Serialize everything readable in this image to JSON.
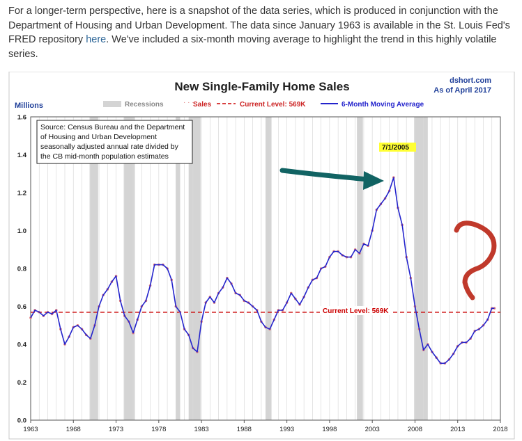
{
  "intro": {
    "text_before_link": "For a longer-term perspective, here is a snapshot of the data series, which is produced in conjunction with the Department of Housing and Urban Development. The data since January 1963 is available in the St. Louis Fed's FRED repository ",
    "link_label": "here",
    "text_after_link": ". We've included a six-month moving average to highlight the trend in this highly volatile series."
  },
  "chart": {
    "brand": "dshort.com",
    "date_label": "As of April 2017",
    "source_lines": [
      "Source: Census Bureau and the Department",
      "of Housing and Urban Development",
      "seasonally adjusted annual rate divided by",
      "the CB mid-month population estimates"
    ],
    "callout_label": "7/1/2005",
    "current_level_label": "Current Level: 569K"
  },
  "chart_data": {
    "type": "line",
    "title": "New Single-Family Home Sales",
    "ylabel": "Millions",
    "xlabel": "",
    "xlim": [
      1963,
      2018
    ],
    "ylim": [
      0.0,
      1.6
    ],
    "x_ticks": [
      1963,
      1968,
      1973,
      1978,
      1983,
      1988,
      1993,
      1998,
      2003,
      2008,
      2013,
      2018
    ],
    "y_ticks": [
      "0.0",
      "0.2",
      "0.4",
      "0.6",
      "0.8",
      "1.0",
      "1.2",
      "1.4",
      "1.6"
    ],
    "grid": "vertical",
    "legend_placement": "top",
    "legend": [
      "Recessions",
      "Sales",
      "Current Level: 569K",
      "6-Month Moving Average"
    ],
    "reference_line": {
      "name": "Current Level: 569K",
      "value": 0.569
    },
    "recessions": [
      [
        1969.9,
        1970.9
      ],
      [
        1973.9,
        1975.2
      ],
      [
        1980.0,
        1980.5
      ],
      [
        1981.5,
        1982.9
      ],
      [
        1990.5,
        1991.2
      ],
      [
        2001.2,
        2001.9
      ],
      [
        2007.9,
        2009.5
      ]
    ],
    "series": [
      {
        "name": "Sales",
        "points": [
          [
            1963.0,
            0.54
          ],
          [
            1963.5,
            0.58
          ],
          [
            1964.0,
            0.57
          ],
          [
            1964.5,
            0.55
          ],
          [
            1965.0,
            0.57
          ],
          [
            1965.5,
            0.56
          ],
          [
            1966.0,
            0.58
          ],
          [
            1966.5,
            0.48
          ],
          [
            1967.0,
            0.4
          ],
          [
            1967.5,
            0.44
          ],
          [
            1968.0,
            0.49
          ],
          [
            1968.5,
            0.5
          ],
          [
            1969.0,
            0.48
          ],
          [
            1969.5,
            0.45
          ],
          [
            1970.0,
            0.43
          ],
          [
            1970.5,
            0.5
          ],
          [
            1971.0,
            0.6
          ],
          [
            1971.5,
            0.66
          ],
          [
            1972.0,
            0.69
          ],
          [
            1972.5,
            0.73
          ],
          [
            1973.0,
            0.76
          ],
          [
            1973.5,
            0.63
          ],
          [
            1974.0,
            0.55
          ],
          [
            1974.5,
            0.52
          ],
          [
            1975.0,
            0.46
          ],
          [
            1975.5,
            0.53
          ],
          [
            1976.0,
            0.6
          ],
          [
            1976.5,
            0.63
          ],
          [
            1977.0,
            0.71
          ],
          [
            1977.5,
            0.82
          ],
          [
            1978.0,
            0.82
          ],
          [
            1978.5,
            0.82
          ],
          [
            1979.0,
            0.8
          ],
          [
            1979.5,
            0.74
          ],
          [
            1980.0,
            0.6
          ],
          [
            1980.5,
            0.57
          ],
          [
            1981.0,
            0.48
          ],
          [
            1981.5,
            0.45
          ],
          [
            1982.0,
            0.38
          ],
          [
            1982.5,
            0.36
          ],
          [
            1983.0,
            0.52
          ],
          [
            1983.5,
            0.62
          ],
          [
            1984.0,
            0.65
          ],
          [
            1984.5,
            0.62
          ],
          [
            1985.0,
            0.67
          ],
          [
            1985.5,
            0.7
          ],
          [
            1986.0,
            0.75
          ],
          [
            1986.5,
            0.72
          ],
          [
            1987.0,
            0.67
          ],
          [
            1987.5,
            0.66
          ],
          [
            1988.0,
            0.63
          ],
          [
            1988.5,
            0.62
          ],
          [
            1989.0,
            0.6
          ],
          [
            1989.5,
            0.58
          ],
          [
            1990.0,
            0.52
          ],
          [
            1990.5,
            0.49
          ],
          [
            1991.0,
            0.48
          ],
          [
            1991.5,
            0.53
          ],
          [
            1992.0,
            0.58
          ],
          [
            1992.5,
            0.58
          ],
          [
            1993.0,
            0.62
          ],
          [
            1993.5,
            0.67
          ],
          [
            1994.0,
            0.64
          ],
          [
            1994.5,
            0.61
          ],
          [
            1995.0,
            0.65
          ],
          [
            1995.5,
            0.7
          ],
          [
            1996.0,
            0.74
          ],
          [
            1996.5,
            0.75
          ],
          [
            1997.0,
            0.8
          ],
          [
            1997.5,
            0.81
          ],
          [
            1998.0,
            0.86
          ],
          [
            1998.5,
            0.89
          ],
          [
            1999.0,
            0.89
          ],
          [
            1999.5,
            0.87
          ],
          [
            2000.0,
            0.86
          ],
          [
            2000.5,
            0.86
          ],
          [
            2001.0,
            0.9
          ],
          [
            2001.5,
            0.88
          ],
          [
            2002.0,
            0.93
          ],
          [
            2002.5,
            0.92
          ],
          [
            2003.0,
            1.0
          ],
          [
            2003.5,
            1.11
          ],
          [
            2004.0,
            1.14
          ],
          [
            2004.5,
            1.17
          ],
          [
            2005.0,
            1.21
          ],
          [
            2005.5,
            1.28
          ],
          [
            2006.0,
            1.12
          ],
          [
            2006.5,
            1.03
          ],
          [
            2007.0,
            0.86
          ],
          [
            2007.5,
            0.75
          ],
          [
            2008.0,
            0.6
          ],
          [
            2008.5,
            0.48
          ],
          [
            2009.0,
            0.37
          ],
          [
            2009.5,
            0.4
          ],
          [
            2010.0,
            0.36
          ],
          [
            2010.5,
            0.33
          ],
          [
            2011.0,
            0.3
          ],
          [
            2011.5,
            0.3
          ],
          [
            2012.0,
            0.32
          ],
          [
            2012.5,
            0.35
          ],
          [
            2013.0,
            0.39
          ],
          [
            2013.5,
            0.41
          ],
          [
            2014.0,
            0.41
          ],
          [
            2014.5,
            0.43
          ],
          [
            2015.0,
            0.47
          ],
          [
            2015.5,
            0.48
          ],
          [
            2016.0,
            0.5
          ],
          [
            2016.5,
            0.53
          ],
          [
            2017.0,
            0.59
          ],
          [
            2017.3,
            0.59
          ]
        ]
      },
      {
        "name": "6-Month Moving Average",
        "points": [
          [
            1963.0,
            0.54
          ],
          [
            1963.5,
            0.58
          ],
          [
            1964.0,
            0.57
          ],
          [
            1964.5,
            0.55
          ],
          [
            1965.0,
            0.57
          ],
          [
            1965.5,
            0.56
          ],
          [
            1966.0,
            0.58
          ],
          [
            1966.5,
            0.48
          ],
          [
            1967.0,
            0.4
          ],
          [
            1967.5,
            0.44
          ],
          [
            1968.0,
            0.49
          ],
          [
            1968.5,
            0.5
          ],
          [
            1969.0,
            0.48
          ],
          [
            1969.5,
            0.45
          ],
          [
            1970.0,
            0.43
          ],
          [
            1970.5,
            0.5
          ],
          [
            1971.0,
            0.6
          ],
          [
            1971.5,
            0.66
          ],
          [
            1972.0,
            0.69
          ],
          [
            1972.5,
            0.73
          ],
          [
            1973.0,
            0.76
          ],
          [
            1973.5,
            0.63
          ],
          [
            1974.0,
            0.55
          ],
          [
            1974.5,
            0.52
          ],
          [
            1975.0,
            0.46
          ],
          [
            1975.5,
            0.53
          ],
          [
            1976.0,
            0.6
          ],
          [
            1976.5,
            0.63
          ],
          [
            1977.0,
            0.71
          ],
          [
            1977.5,
            0.82
          ],
          [
            1978.0,
            0.82
          ],
          [
            1978.5,
            0.82
          ],
          [
            1979.0,
            0.8
          ],
          [
            1979.5,
            0.74
          ],
          [
            1980.0,
            0.6
          ],
          [
            1980.5,
            0.57
          ],
          [
            1981.0,
            0.48
          ],
          [
            1981.5,
            0.45
          ],
          [
            1982.0,
            0.38
          ],
          [
            1982.5,
            0.36
          ],
          [
            1983.0,
            0.52
          ],
          [
            1983.5,
            0.62
          ],
          [
            1984.0,
            0.65
          ],
          [
            1984.5,
            0.62
          ],
          [
            1985.0,
            0.67
          ],
          [
            1985.5,
            0.7
          ],
          [
            1986.0,
            0.75
          ],
          [
            1986.5,
            0.72
          ],
          [
            1987.0,
            0.67
          ],
          [
            1987.5,
            0.66
          ],
          [
            1988.0,
            0.63
          ],
          [
            1988.5,
            0.62
          ],
          [
            1989.0,
            0.6
          ],
          [
            1989.5,
            0.58
          ],
          [
            1990.0,
            0.52
          ],
          [
            1990.5,
            0.49
          ],
          [
            1991.0,
            0.48
          ],
          [
            1991.5,
            0.53
          ],
          [
            1992.0,
            0.58
          ],
          [
            1992.5,
            0.58
          ],
          [
            1993.0,
            0.62
          ],
          [
            1993.5,
            0.67
          ],
          [
            1994.0,
            0.64
          ],
          [
            1994.5,
            0.61
          ],
          [
            1995.0,
            0.65
          ],
          [
            1995.5,
            0.7
          ],
          [
            1996.0,
            0.74
          ],
          [
            1996.5,
            0.75
          ],
          [
            1997.0,
            0.8
          ],
          [
            1997.5,
            0.81
          ],
          [
            1998.0,
            0.86
          ],
          [
            1998.5,
            0.89
          ],
          [
            1999.0,
            0.89
          ],
          [
            1999.5,
            0.87
          ],
          [
            2000.0,
            0.86
          ],
          [
            2000.5,
            0.86
          ],
          [
            2001.0,
            0.9
          ],
          [
            2001.5,
            0.88
          ],
          [
            2002.0,
            0.93
          ],
          [
            2002.5,
            0.92
          ],
          [
            2003.0,
            1.0
          ],
          [
            2003.5,
            1.11
          ],
          [
            2004.0,
            1.14
          ],
          [
            2004.5,
            1.17
          ],
          [
            2005.0,
            1.21
          ],
          [
            2005.5,
            1.28
          ],
          [
            2006.0,
            1.12
          ],
          [
            2006.5,
            1.03
          ],
          [
            2007.0,
            0.86
          ],
          [
            2007.5,
            0.75
          ],
          [
            2008.0,
            0.6
          ],
          [
            2008.5,
            0.48
          ],
          [
            2009.0,
            0.37
          ],
          [
            2009.5,
            0.4
          ],
          [
            2010.0,
            0.36
          ],
          [
            2010.5,
            0.33
          ],
          [
            2011.0,
            0.3
          ],
          [
            2011.5,
            0.3
          ],
          [
            2012.0,
            0.32
          ],
          [
            2012.5,
            0.35
          ],
          [
            2013.0,
            0.39
          ],
          [
            2013.5,
            0.41
          ],
          [
            2014.0,
            0.41
          ],
          [
            2014.5,
            0.43
          ],
          [
            2015.0,
            0.47
          ],
          [
            2015.5,
            0.48
          ],
          [
            2016.0,
            0.5
          ],
          [
            2016.5,
            0.53
          ],
          [
            2017.0,
            0.59
          ],
          [
            2017.3,
            0.59
          ]
        ]
      }
    ],
    "callout": {
      "x": 2005.5,
      "y": 1.29
    }
  },
  "colors": {
    "sales_dots": "#e07a7a",
    "moving_average": "#2323cc",
    "current_level_line": "#cc0000",
    "recession_band": "#d4d4d4",
    "arrow": "#116363",
    "question_mark": "#c0392b",
    "callout_fill": "#ffff33",
    "brand_text": "#1f3f99"
  }
}
